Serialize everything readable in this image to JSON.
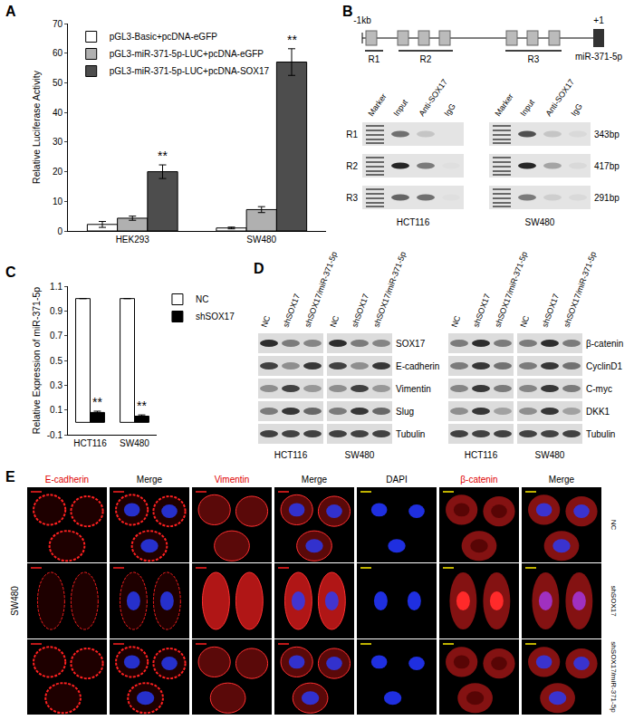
{
  "chart_data": [
    {
      "panel": "A",
      "type": "bar",
      "categories": [
        "HEK293",
        "SW480"
      ],
      "series": [
        {
          "name": "pGL3-Basic+pcDNA-eGFP",
          "color": "#ffffff",
          "values": [
            2.2,
            1.0
          ],
          "errors": [
            1.0,
            0.3
          ]
        },
        {
          "name": "pGL3-miR-371-5p-LUC+pcDNA-eGFP",
          "color": "#b0b0b0",
          "values": [
            4.3,
            7.2
          ],
          "errors": [
            0.7,
            1.0
          ]
        },
        {
          "name": "pGL3-miR-371-5p-LUC+pcDNA-SOX17",
          "color": "#4d4d4d",
          "values": [
            20,
            57
          ],
          "errors": [
            2.3,
            4.5
          ]
        }
      ],
      "ylabel": "Relative Luciferase Activity",
      "ylim": [
        0,
        70
      ],
      "yticks": [
        0,
        10,
        20,
        30,
        40,
        50,
        60,
        70
      ],
      "grid": false,
      "legend": "top-left",
      "annotations": [
        {
          "text": "**",
          "category": "HEK293",
          "series": "pGL3-miR-371-5p-LUC+pcDNA-SOX17"
        },
        {
          "text": "**",
          "category": "SW480",
          "series": "pGL3-miR-371-5p-LUC+pcDNA-SOX17"
        }
      ]
    },
    {
      "panel": "C",
      "type": "bar",
      "categories": [
        "HCT116",
        "SW480"
      ],
      "series": [
        {
          "name": "NC",
          "color": "#ffffff",
          "values": [
            1.0,
            1.0
          ],
          "errors": [
            0,
            0
          ]
        },
        {
          "name": "shSOX17",
          "color": "#000000",
          "values": [
            0.08,
            0.05
          ],
          "errors": [
            0.01,
            0.01
          ]
        }
      ],
      "ylabel": "Relative Expression of miR-371-5p",
      "ylim": [
        -0.1,
        1.1
      ],
      "yticks": [
        -0.1,
        0.1,
        0.3,
        0.5,
        0.7,
        0.9,
        1.1
      ],
      "grid": false,
      "legend": "top-right",
      "annotations": [
        {
          "text": "**",
          "category": "HCT116",
          "series": "shSOX17"
        },
        {
          "text": "**",
          "category": "SW480",
          "series": "shSOX17"
        }
      ]
    }
  ],
  "panel_B": {
    "panel": "B",
    "promoter": {
      "start": "-1kb",
      "end": "+1",
      "gene": "miR-371-5p",
      "regions": [
        "R1",
        "R2",
        "R3"
      ]
    },
    "lanes": [
      "Marker",
      "Input",
      "Anti-SOX17",
      "IgG"
    ],
    "rows": [
      "R1",
      "R2",
      "R3"
    ],
    "sizes": [
      "343bp",
      "417bp",
      "291bp"
    ],
    "cell_lines": [
      "HCT116",
      "SW480"
    ]
  },
  "panel_D": {
    "panel": "D",
    "lanes": [
      "NC",
      "shSOX17",
      "shSOX17/miR-371-5p"
    ],
    "cell_lines": [
      "HCT116",
      "SW480"
    ],
    "blots": [
      {
        "proteins": [
          "SOX17",
          "E-cadherin",
          "Vimentin",
          "Slug",
          "Tubulin"
        ]
      },
      {
        "proteins": [
          "β-catenin",
          "CyclinD1",
          "C-myc",
          "DKK1",
          "Tubulin"
        ]
      }
    ]
  },
  "panel_E": {
    "panel": "E",
    "cell_line": "SW480",
    "columns": [
      {
        "label": "E-cadherin",
        "color": "#e00000"
      },
      {
        "label": "Merge",
        "color": "#000000"
      },
      {
        "label": "Vimentin",
        "color": "#e00000"
      },
      {
        "label": "Merge",
        "color": "#000000"
      },
      {
        "label": "DAPI",
        "color": "#000000"
      },
      {
        "label": "β-catenin",
        "color": "#e00000"
      },
      {
        "label": "Merge",
        "color": "#000000"
      }
    ],
    "rows": [
      "NC",
      "shSOX17",
      "shSOX17/miR-371-5p"
    ]
  }
}
